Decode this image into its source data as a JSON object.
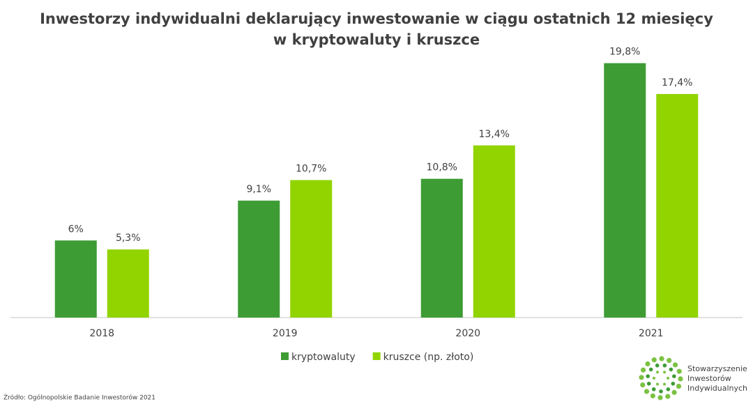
{
  "chart_data": {
    "type": "bar",
    "title": [
      "Inwestorzy indywidualni deklarujący inwestowanie w ciągu ostatnich 12 miesięcy",
      "w kryptowaluty i kruszce"
    ],
    "categories": [
      "2018",
      "2019",
      "2020",
      "2021"
    ],
    "series": [
      {
        "name": "kryptowaluty",
        "color": "#3e9c35",
        "values": [
          6,
          9.1,
          10.8,
          19.8
        ],
        "value_labels": [
          "6%",
          "9,1%",
          "10,8%",
          "19,8%"
        ]
      },
      {
        "name": "kruszce (np. złoto)",
        "color": "#92d400",
        "values": [
          5.3,
          10.7,
          13.4,
          17.4
        ],
        "value_labels": [
          "5,3%",
          "10,7%",
          "13,4%",
          "17,4%"
        ]
      }
    ],
    "ylim": [
      0,
      20
    ],
    "legend": "bottom"
  },
  "source": "Źródło: Ogólnopolskie Badanie Inwestorów 2021",
  "logo": [
    "Stowarzyszenie",
    "Inwestorów",
    "Indywidualnych"
  ]
}
